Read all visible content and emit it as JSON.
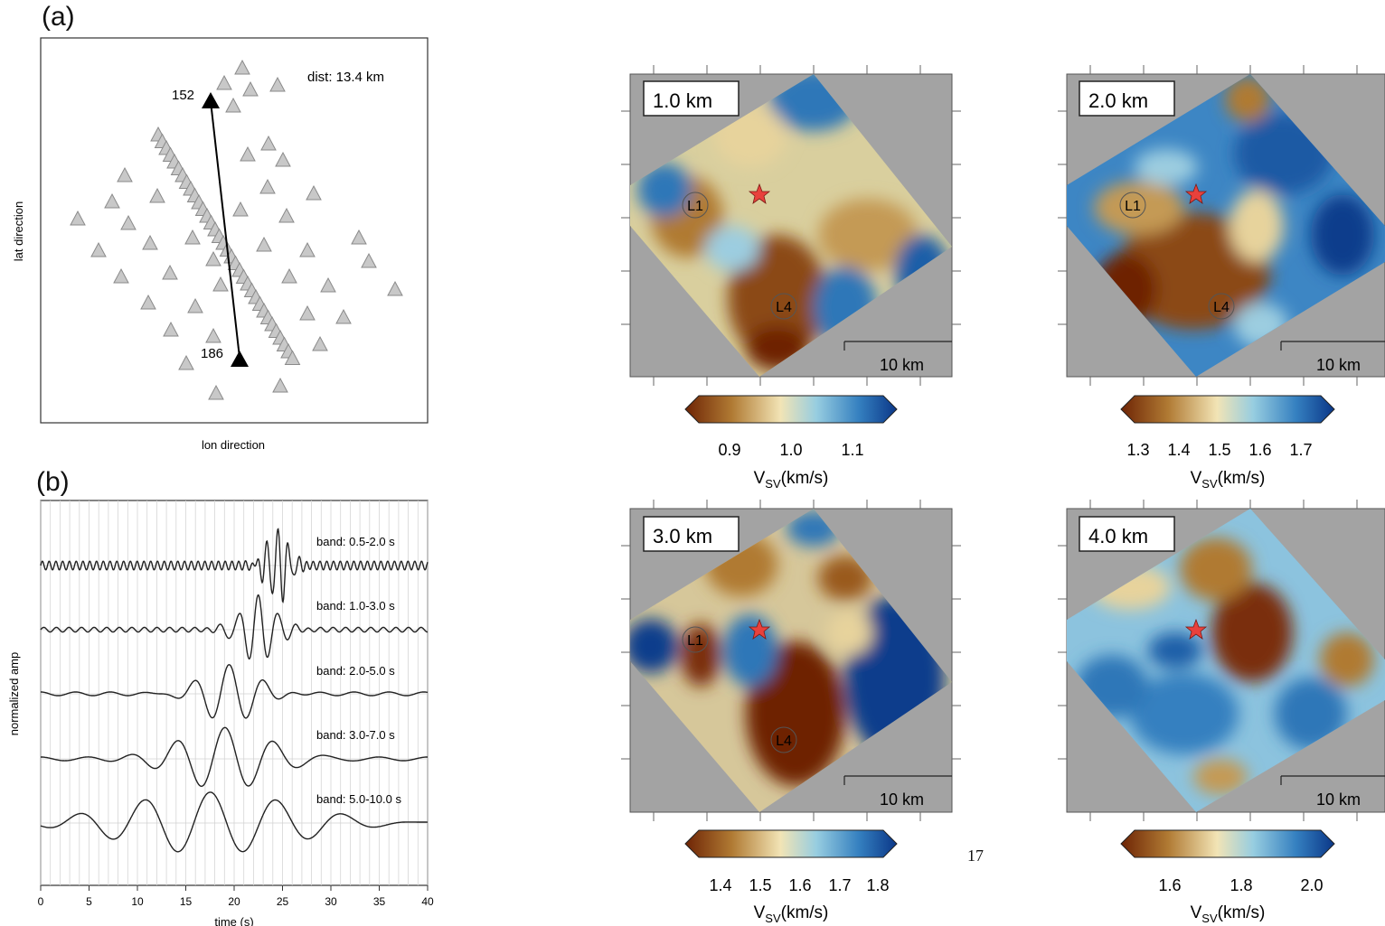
{
  "figure": {
    "page_number": "17",
    "panel_a": {
      "label": "(a)",
      "dist_text": "dist: 13.4 km",
      "station_start": "152",
      "station_end": "186",
      "xlabel": "lon direction",
      "ylabel": "lat direction",
      "colors": {
        "station_fill": "#c8c8c8",
        "station_stroke": "#888888",
        "profile": "#000000"
      }
    },
    "panel_b": {
      "label": "(b)",
      "xlabel": "time (s)",
      "ylabel": "normalized amp",
      "xticks": [
        "0",
        "5",
        "10",
        "15",
        "20",
        "25",
        "30",
        "35",
        "40"
      ],
      "bands": [
        "band: 0.5-2.0 s",
        "band: 1.0-3.0 s",
        "band: 2.0-5.0 s",
        "band: 3.0-7.0 s",
        "band: 5.0-10.0 s"
      ]
    },
    "maps": [
      {
        "depth": "1.0 km",
        "scale": "10 km",
        "ticks": [
          "0.9",
          "1.0",
          "1.1"
        ],
        "clabel": "V",
        "csub": "SV",
        "cunit": "(km/s)",
        "labels": [
          "L1",
          "L4"
        ]
      },
      {
        "depth": "2.0 km",
        "scale": "10 km",
        "ticks": [
          "1.3",
          "1.4",
          "1.5",
          "1.6",
          "1.7"
        ],
        "clabel": "V",
        "csub": "SV",
        "cunit": "(km/s)",
        "labels": [
          "L1",
          "L4"
        ]
      },
      {
        "depth": "3.0 km",
        "scale": "10 km",
        "ticks": [
          "1.4",
          "1.5",
          "1.6",
          "1.7",
          "1.8"
        ],
        "clabel": "V",
        "csub": "SV",
        "cunit": "(km/s)",
        "labels": [
          "L1",
          "L4"
        ]
      },
      {
        "depth": "4.0 km",
        "scale": "10 km",
        "ticks": [
          "1.6",
          "1.8",
          "2.0"
        ],
        "clabel": "V",
        "csub": "SV",
        "cunit": "(km/s)",
        "labels": []
      }
    ],
    "colors": {
      "map_bg": "#a3a3a3",
      "star": "#e8413c",
      "brown": "#7a2f07",
      "tan": "#c49a55",
      "cream": "#f1e3b6",
      "lightblue": "#9ccde0",
      "blue": "#2f77b8",
      "darkblue": "#0c3c8c"
    }
  }
}
